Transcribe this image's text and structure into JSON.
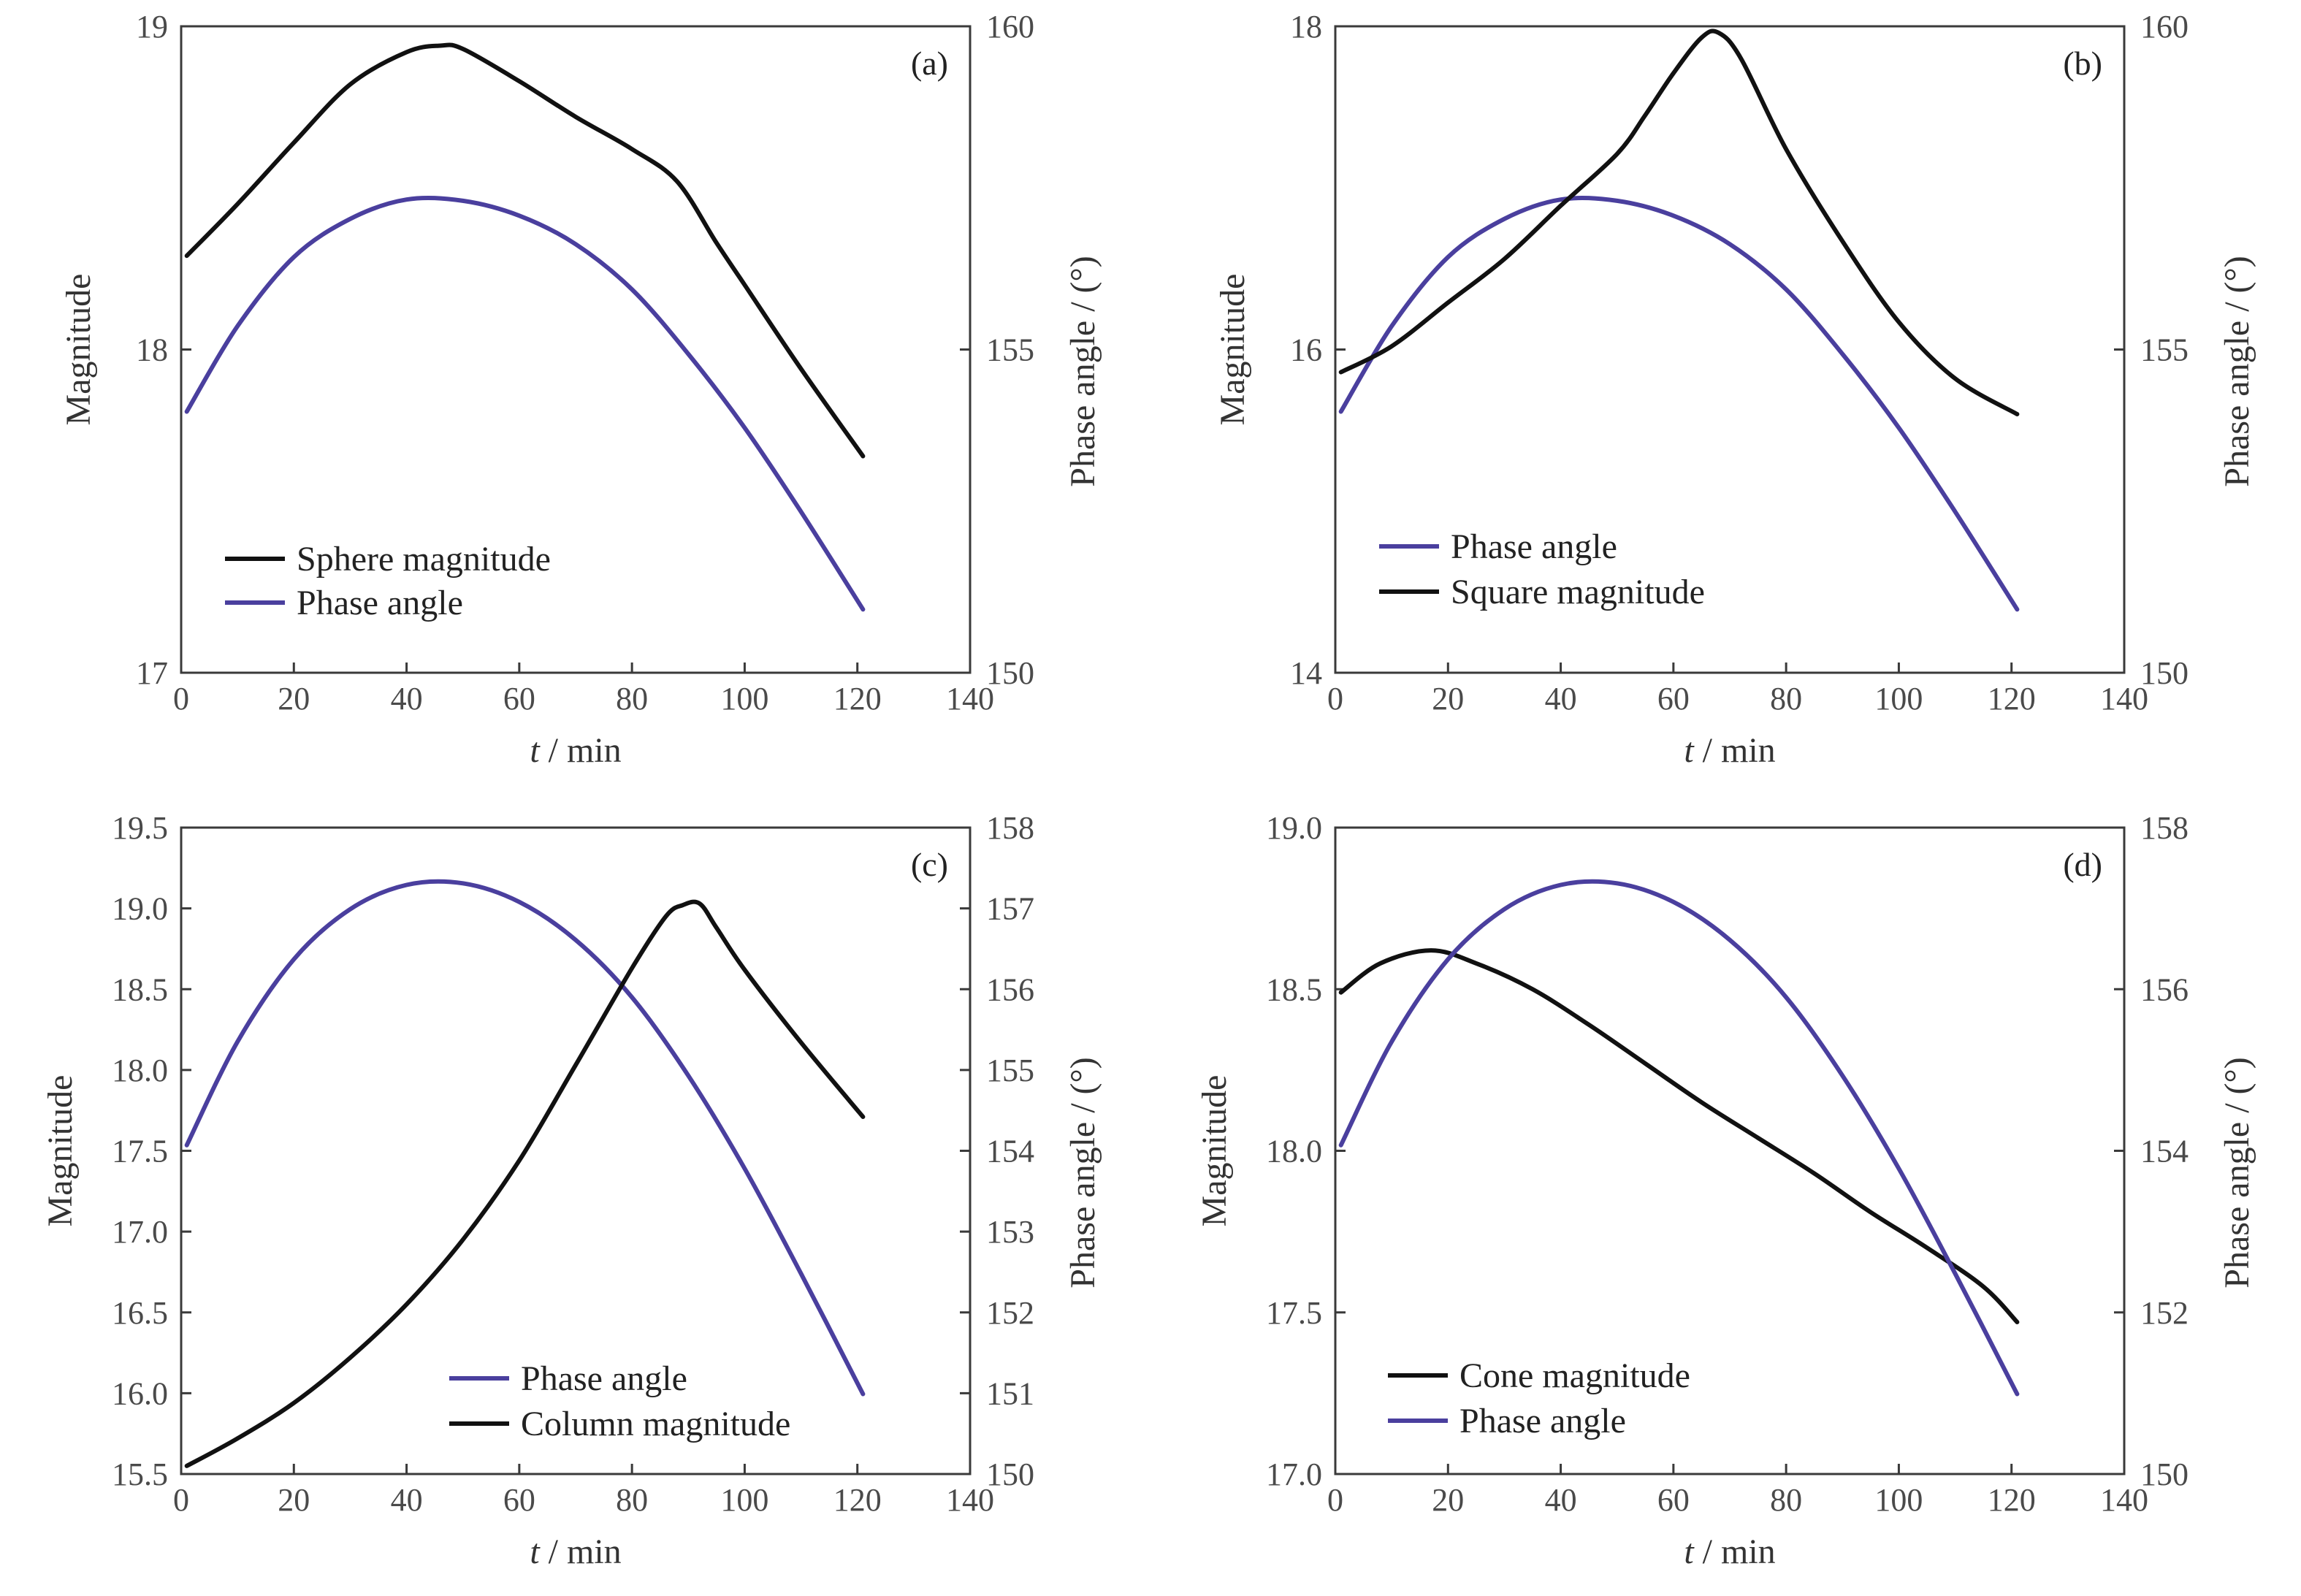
{
  "chart_data": [
    {
      "type": "line",
      "panel_label": "(a)",
      "xlabel_italic": "t",
      "xlabel_rest": " / min",
      "ylabel_left": "Magnitude",
      "ylabel_right": "Phase angle / (°)",
      "xlim": [
        0,
        140
      ],
      "xticks": [
        0,
        20,
        40,
        60,
        80,
        100,
        120,
        140
      ],
      "ylim_left": [
        17,
        19
      ],
      "yticks_left": [
        "17",
        "18",
        "19"
      ],
      "yticks_left_values": [
        17,
        18,
        19
      ],
      "ylim_right": [
        150,
        160
      ],
      "yticks_right": [
        "150",
        "155",
        "160"
      ],
      "yticks_right_values": [
        150,
        155,
        160
      ],
      "legend": [
        "Sphere magnitude",
        "Phase angle"
      ],
      "legend_placement": "bottom-left",
      "series": [
        {
          "name": "Sphere magnitude",
          "axis": "left",
          "color": "#111111",
          "x": [
            1,
            10,
            20,
            30,
            40,
            46,
            50,
            60,
            70,
            80,
            88,
            95,
            100,
            110,
            121
          ],
          "y": [
            18.29,
            18.45,
            18.64,
            18.82,
            18.92,
            18.94,
            18.93,
            18.83,
            18.72,
            18.62,
            18.52,
            18.33,
            18.2,
            17.94,
            17.67
          ]
        },
        {
          "name": "Phase angle",
          "axis": "right",
          "color": "#4a3f9e",
          "x": [
            1,
            10,
            20,
            30,
            40,
            50,
            60,
            70,
            80,
            90,
            100,
            110,
            121
          ],
          "y": [
            154.04,
            155.36,
            156.43,
            157.02,
            157.32,
            157.3,
            157.07,
            156.63,
            155.93,
            154.93,
            153.79,
            152.49,
            150.98
          ]
        }
      ]
    },
    {
      "type": "line",
      "panel_label": "(b)",
      "xlabel_italic": "t",
      "xlabel_rest": " / min",
      "ylabel_left": "Magnitude",
      "ylabel_right": "Phase angle / (°)",
      "xlim": [
        0,
        140
      ],
      "xticks": [
        0,
        20,
        40,
        60,
        80,
        100,
        120,
        140
      ],
      "ylim_left": [
        14,
        18
      ],
      "yticks_left": [
        "14",
        "16",
        "18"
      ],
      "yticks_left_values": [
        14,
        16,
        18
      ],
      "ylim_right": [
        150,
        160
      ],
      "yticks_right": [
        "150",
        "155",
        "160"
      ],
      "yticks_right_values": [
        150,
        155,
        160
      ],
      "legend": [
        "Phase angle",
        "Square magnitude"
      ],
      "legend_placement": "bottom-left",
      "series": [
        {
          "name": "Phase angle",
          "axis": "right",
          "color": "#4a3f9e",
          "x": [
            1,
            10,
            20,
            30,
            40,
            50,
            60,
            70,
            80,
            90,
            100,
            110,
            121
          ],
          "y": [
            154.04,
            155.36,
            156.43,
            157.02,
            157.32,
            157.3,
            157.07,
            156.63,
            155.93,
            154.93,
            153.79,
            152.49,
            150.98
          ]
        },
        {
          "name": "Square magnitude",
          "axis": "left",
          "color": "#111111",
          "x": [
            1,
            10,
            20,
            30,
            40,
            50,
            55,
            60,
            65,
            68,
            72,
            80,
            90,
            100,
            110,
            121
          ],
          "y": [
            15.86,
            16.02,
            16.29,
            16.56,
            16.89,
            17.21,
            17.45,
            17.71,
            17.93,
            17.96,
            17.8,
            17.24,
            16.67,
            16.17,
            15.82,
            15.6
          ]
        }
      ]
    },
    {
      "type": "line",
      "panel_label": "(c)",
      "xlabel_italic": "t",
      "xlabel_rest": " / min",
      "ylabel_left": "Magnitude",
      "ylabel_right": "Phase angle / (°)",
      "xlim": [
        0,
        140
      ],
      "xticks": [
        0,
        20,
        40,
        60,
        80,
        100,
        120,
        140
      ],
      "ylim_left": [
        15.5,
        19.5
      ],
      "yticks_left": [
        "15.5",
        "16.0",
        "16.5",
        "17.0",
        "17.5",
        "18.0",
        "18.5",
        "19.0",
        "19.5"
      ],
      "yticks_left_values": [
        15.5,
        16,
        16.5,
        17,
        17.5,
        18,
        18.5,
        19,
        19.5
      ],
      "ylim_right": [
        150,
        158
      ],
      "yticks_right": [
        "150",
        "151",
        "152",
        "153",
        "154",
        "155",
        "156",
        "157",
        "158"
      ],
      "yticks_right_values": [
        150,
        151,
        152,
        153,
        154,
        155,
        156,
        157,
        158
      ],
      "legend": [
        "Phase angle",
        "Column magnitude"
      ],
      "legend_placement": "bottom-center",
      "series": [
        {
          "name": "Phase angle",
          "axis": "right",
          "color": "#4a3f9e",
          "x": [
            1,
            10,
            20,
            30,
            40,
            50,
            60,
            70,
            80,
            90,
            100,
            110,
            121
          ],
          "y": [
            154.07,
            155.35,
            156.37,
            156.99,
            157.29,
            157.31,
            157.08,
            156.61,
            155.9,
            154.93,
            153.78,
            152.48,
            150.99
          ]
        },
        {
          "name": "Column magnitude",
          "axis": "left",
          "color": "#111111",
          "x": [
            1,
            10,
            20,
            30,
            40,
            50,
            60,
            70,
            80,
            86,
            89,
            92,
            95,
            100,
            110,
            121
          ],
          "y": [
            15.55,
            15.72,
            15.94,
            16.22,
            16.55,
            16.95,
            17.44,
            18.03,
            18.63,
            18.95,
            19.02,
            19.03,
            18.88,
            18.62,
            18.17,
            17.71
          ]
        }
      ]
    },
    {
      "type": "line",
      "panel_label": "(d)",
      "xlabel_italic": "t",
      "xlabel_rest": " / min",
      "ylabel_left": "Magnitude",
      "ylabel_right": "Phase angle / (°)",
      "xlim": [
        0,
        140
      ],
      "xticks": [
        0,
        20,
        40,
        60,
        80,
        100,
        120,
        140
      ],
      "ylim_left": [
        17,
        19
      ],
      "yticks_left": [
        "17.0",
        "17.5",
        "18.0",
        "18.5",
        "19.0"
      ],
      "yticks_left_values": [
        17,
        17.5,
        18,
        18.5,
        19
      ],
      "ylim_right": [
        150,
        158
      ],
      "yticks_right": [
        "150",
        "152",
        "154",
        "156",
        "158"
      ],
      "yticks_right_values": [
        150,
        152,
        154,
        156,
        158
      ],
      "legend": [
        "Cone magnitude",
        "Phase angle"
      ],
      "legend_placement": "bottom-left",
      "series": [
        {
          "name": "Cone magnitude",
          "axis": "left",
          "color": "#111111",
          "x": [
            1,
            8,
            17,
            25,
            35,
            45,
            55,
            65,
            75,
            85,
            95,
            105,
            115,
            121
          ],
          "y": [
            18.49,
            18.58,
            18.62,
            18.58,
            18.5,
            18.39,
            18.27,
            18.15,
            18.04,
            17.93,
            17.81,
            17.7,
            17.58,
            17.47
          ]
        },
        {
          "name": "Phase angle",
          "axis": "right",
          "color": "#4a3f9e",
          "x": [
            1,
            10,
            20,
            30,
            40,
            50,
            60,
            70,
            80,
            90,
            100,
            110,
            121
          ],
          "y": [
            154.07,
            155.35,
            156.37,
            156.99,
            157.29,
            157.31,
            157.08,
            156.61,
            155.9,
            154.93,
            153.78,
            152.48,
            150.99
          ]
        }
      ]
    }
  ]
}
